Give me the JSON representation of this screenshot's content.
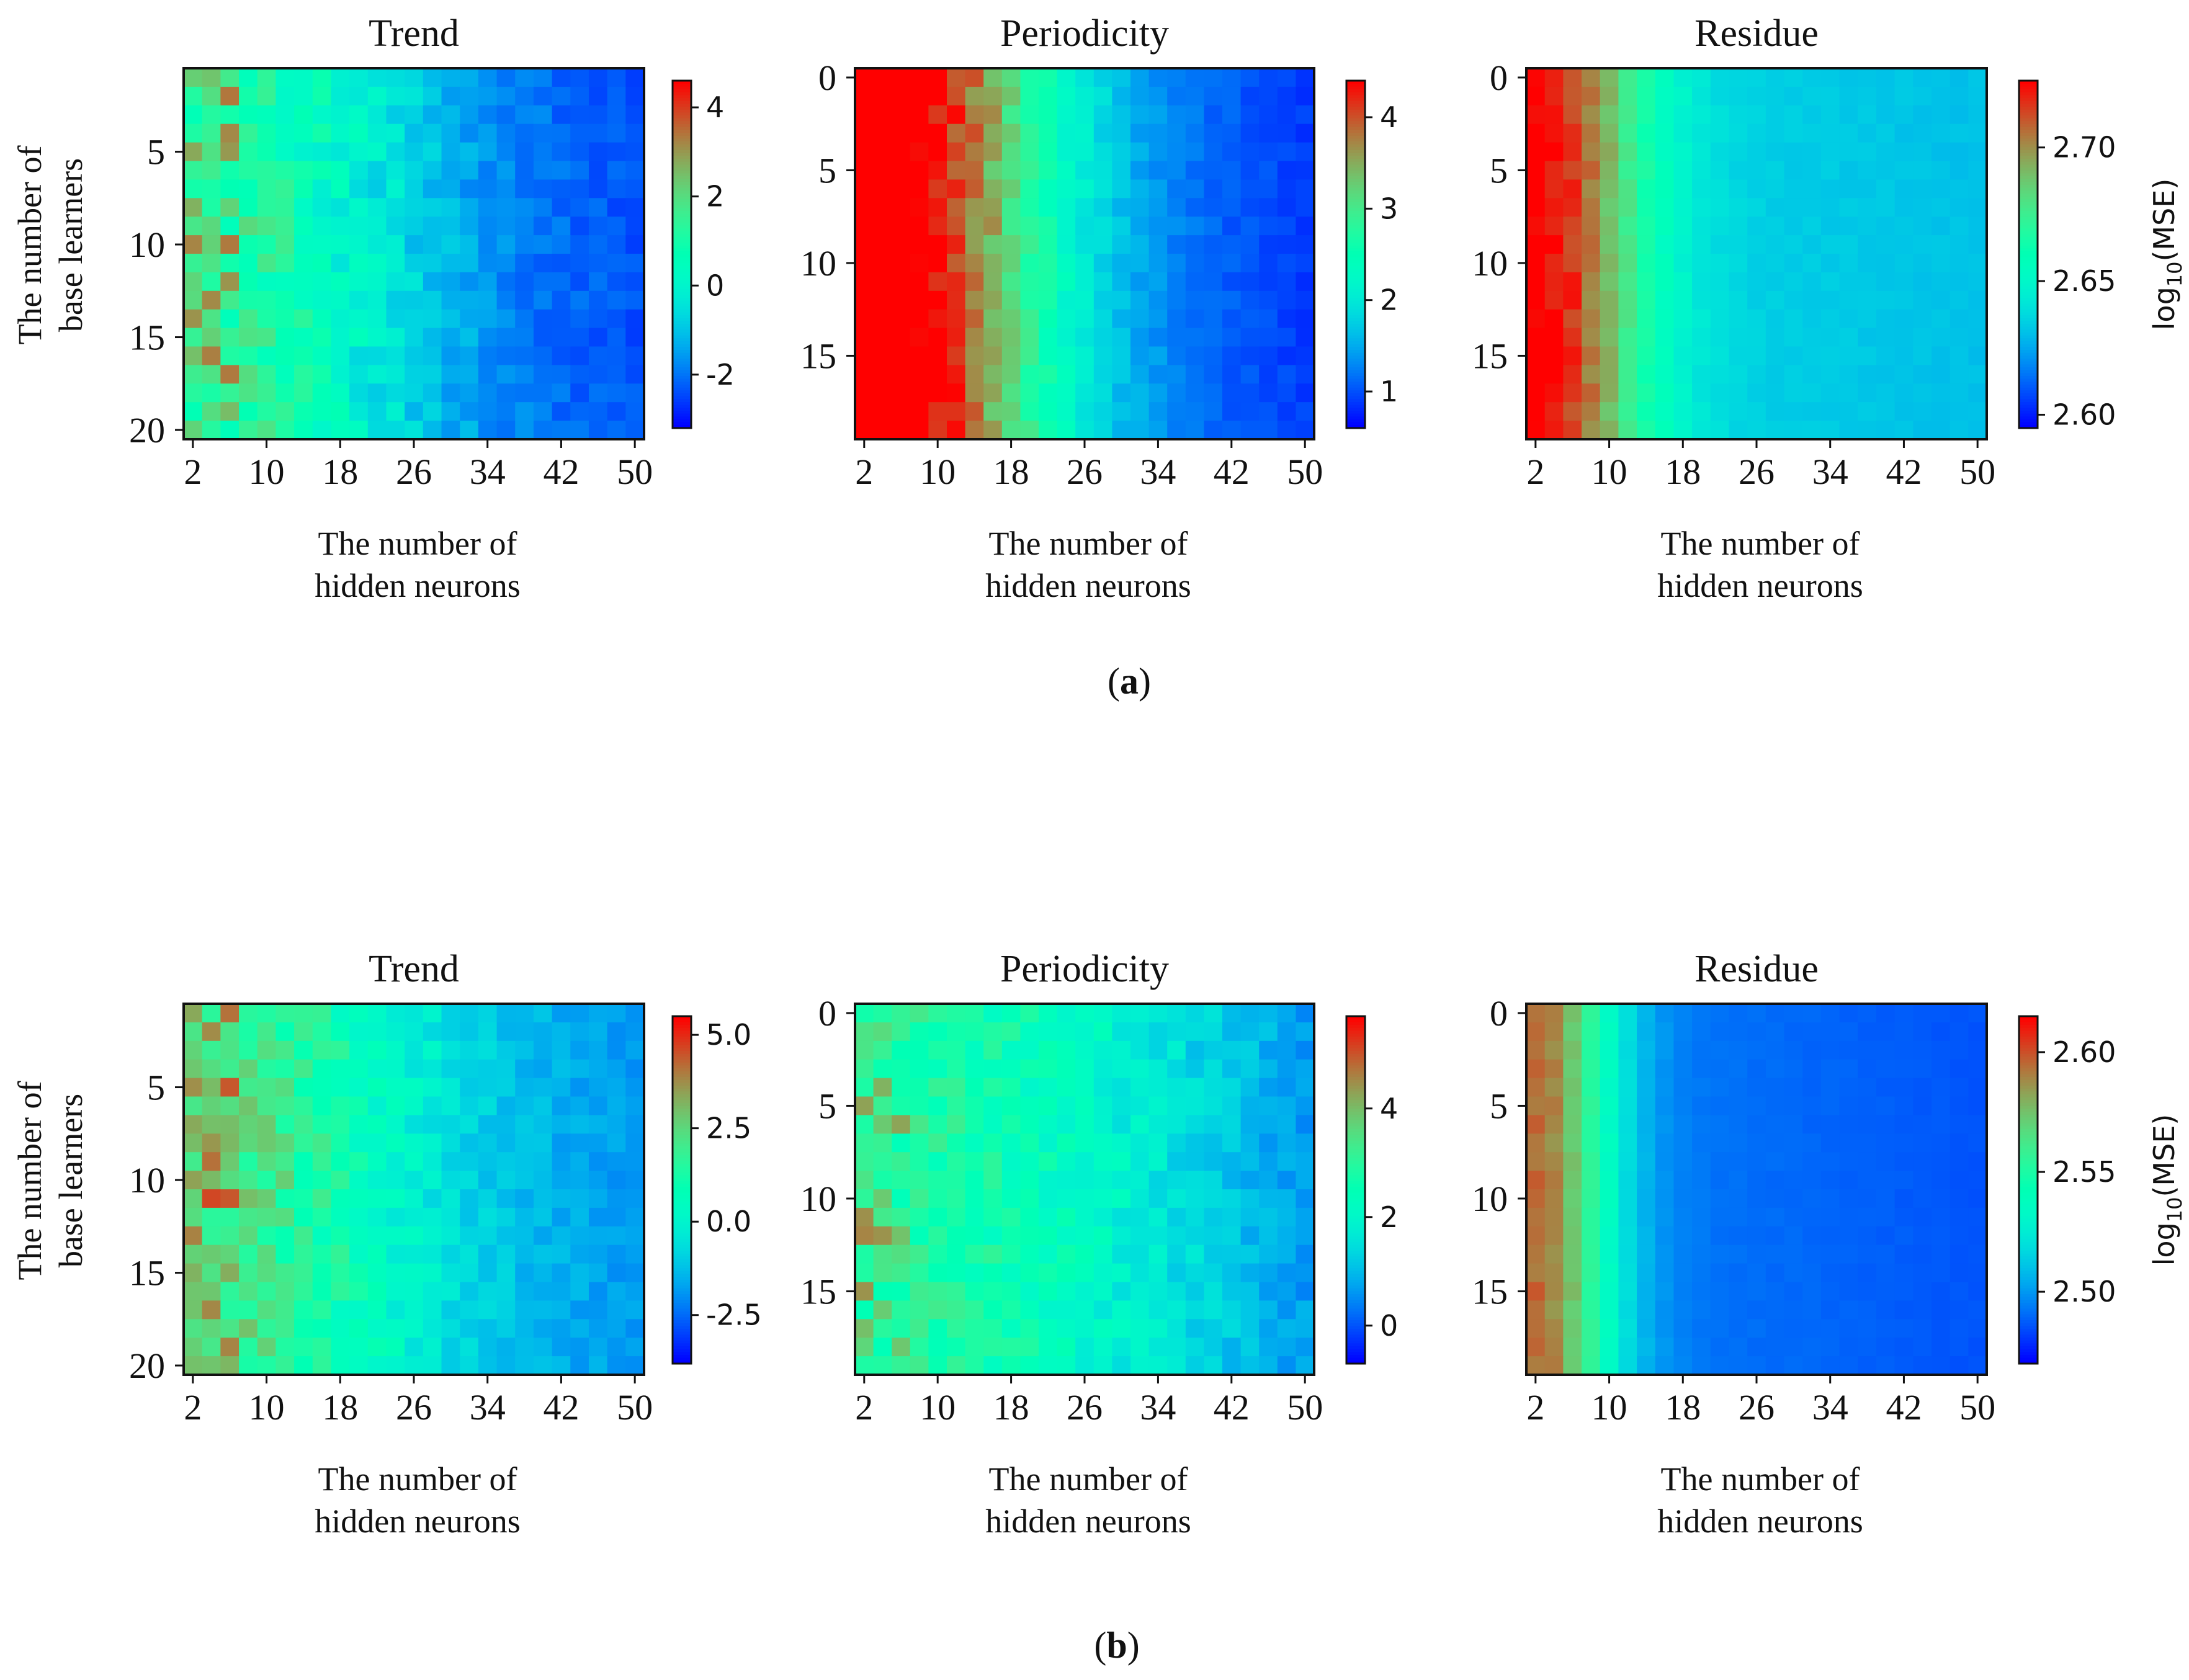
{
  "figure": {
    "panel_labels": [
      {
        "open": "(",
        "letter": "a",
        "close": ")"
      },
      {
        "open": "(",
        "letter": "b",
        "close": ")"
      }
    ]
  },
  "colors": {
    "colormap": "rainbow",
    "low": "#8000ff",
    "mid": "#2adddd",
    "high": "#ff0000",
    "frame": "#111111"
  },
  "chart_data": [
    {
      "type": "heatmap",
      "title": "Trend",
      "xlabel": "The number of hidden neurons",
      "ylabel": "The number of base learners",
      "xticks": [
        "2",
        "10",
        "18",
        "26",
        "34",
        "42",
        "50"
      ],
      "yticks": [
        "5",
        "10",
        "15",
        "20"
      ],
      "grid_size": [
        25,
        20
      ],
      "x_range": [
        2,
        50
      ],
      "y_range": [
        1,
        20
      ],
      "colorbar": {
        "range": [
          -3.2,
          4.6
        ],
        "ticks": [
          "4",
          "2",
          "0",
          "-2"
        ],
        "tick_values": [
          4,
          2,
          0,
          -2
        ],
        "label": ""
      },
      "pattern": {
        "base": -2.5,
        "spread": 0.7,
        "peak": 3.6,
        "peak_width": 9,
        "noise": 1.3,
        "hot_band": 0.3,
        "seed": 11
      }
    },
    {
      "type": "heatmap",
      "title": "Periodicity",
      "xlabel": "The number of hidden neurons",
      "ylabel": "",
      "xticks": [
        "2",
        "10",
        "18",
        "26",
        "34",
        "42",
        "50"
      ],
      "yticks": [
        "0",
        "5",
        "10",
        "15"
      ],
      "grid_size": [
        25,
        20
      ],
      "x_range": [
        2,
        50
      ],
      "y_range": [
        0,
        19
      ],
      "colorbar": {
        "range": [
          0.6,
          4.4
        ],
        "ticks": [
          "4",
          "3",
          "2",
          "1"
        ],
        "tick_values": [
          4,
          3,
          2,
          1
        ],
        "label": ""
      },
      "pattern": {
        "base": 0.85,
        "spread": 1.4,
        "peak": 3.5,
        "peak_width": 7,
        "noise": 0.5,
        "hot_band": 0.25,
        "seed": 23
      }
    },
    {
      "type": "heatmap",
      "title": "Residue",
      "xlabel": "The number of hidden neurons",
      "ylabel": "",
      "xticks": [
        "2",
        "10",
        "18",
        "26",
        "34",
        "42",
        "50"
      ],
      "yticks": [
        "0",
        "5",
        "10",
        "15"
      ],
      "grid_size": [
        25,
        20
      ],
      "x_range": [
        2,
        50
      ],
      "y_range": [
        0,
        19
      ],
      "colorbar": {
        "range": [
          2.595,
          2.725
        ],
        "ticks": [
          "2.70",
          "2.65",
          "2.60"
        ],
        "tick_values": [
          2.7,
          2.65,
          2.6
        ],
        "label_main": "log",
        "label_sub": "10",
        "label_tail": "(MSE)"
      },
      "pattern": {
        "base": 2.63,
        "spread": 0.015,
        "peak": 0.09,
        "peak_width": 4,
        "noise": 0.01,
        "hot_band": 0,
        "seed": 37
      }
    },
    {
      "type": "heatmap",
      "title": "Trend",
      "xlabel": "The number of hidden neurons",
      "ylabel": "The number of base learners",
      "xticks": [
        "2",
        "10",
        "18",
        "26",
        "34",
        "42",
        "50"
      ],
      "yticks": [
        "5",
        "10",
        "15",
        "20"
      ],
      "grid_size": [
        25,
        20
      ],
      "x_range": [
        2,
        50
      ],
      "y_range": [
        1,
        20
      ],
      "colorbar": {
        "range": [
          -3.8,
          5.5
        ],
        "ticks": [
          "5.0",
          "2.5",
          "0.0",
          "-2.5"
        ],
        "tick_values": [
          5.0,
          2.5,
          0.0,
          -2.5
        ],
        "label": ""
      },
      "pattern": {
        "base": -2.0,
        "spread": 0.9,
        "peak": 4.0,
        "peak_width": 9,
        "noise": 1.5,
        "hot_band": 0.3,
        "seed": 53
      }
    },
    {
      "type": "heatmap",
      "title": "Periodicity",
      "xlabel": "The number of hidden neurons",
      "ylabel": "",
      "xticks": [
        "2",
        "10",
        "18",
        "26",
        "34",
        "42",
        "50"
      ],
      "yticks": [
        "0",
        "5",
        "10",
        "15"
      ],
      "grid_size": [
        25,
        20
      ],
      "x_range": [
        2,
        50
      ],
      "y_range": [
        0,
        19
      ],
      "colorbar": {
        "range": [
          -0.7,
          5.7
        ],
        "ticks": [
          "4",
          "2",
          "0"
        ],
        "tick_values": [
          4,
          2,
          0
        ],
        "label": ""
      },
      "pattern": {
        "base": -0.4,
        "spread": 0.3,
        "peak": 3.2,
        "peak_width": 16,
        "noise": 0.8,
        "hot_band": 0.25,
        "seed": 71
      }
    },
    {
      "type": "heatmap",
      "title": "Residue",
      "xlabel": "The number of hidden neurons",
      "ylabel": "",
      "xticks": [
        "2",
        "10",
        "18",
        "26",
        "34",
        "42",
        "50"
      ],
      "yticks": [
        "0",
        "5",
        "10",
        "15"
      ],
      "grid_size": [
        25,
        20
      ],
      "x_range": [
        2,
        50
      ],
      "y_range": [
        0,
        19
      ],
      "colorbar": {
        "range": [
          2.47,
          2.615
        ],
        "ticks": [
          "2.60",
          "2.55",
          "2.50"
        ],
        "tick_values": [
          2.6,
          2.55,
          2.5
        ],
        "label_main": "log",
        "label_sub": "10",
        "label_tail": "(MSE)"
      },
      "pattern": {
        "base": 2.485,
        "spread": 0.02,
        "peak": 0.1,
        "peak_width": 3,
        "noise": 0.006,
        "hot_band": 0,
        "seed": 89
      }
    }
  ]
}
